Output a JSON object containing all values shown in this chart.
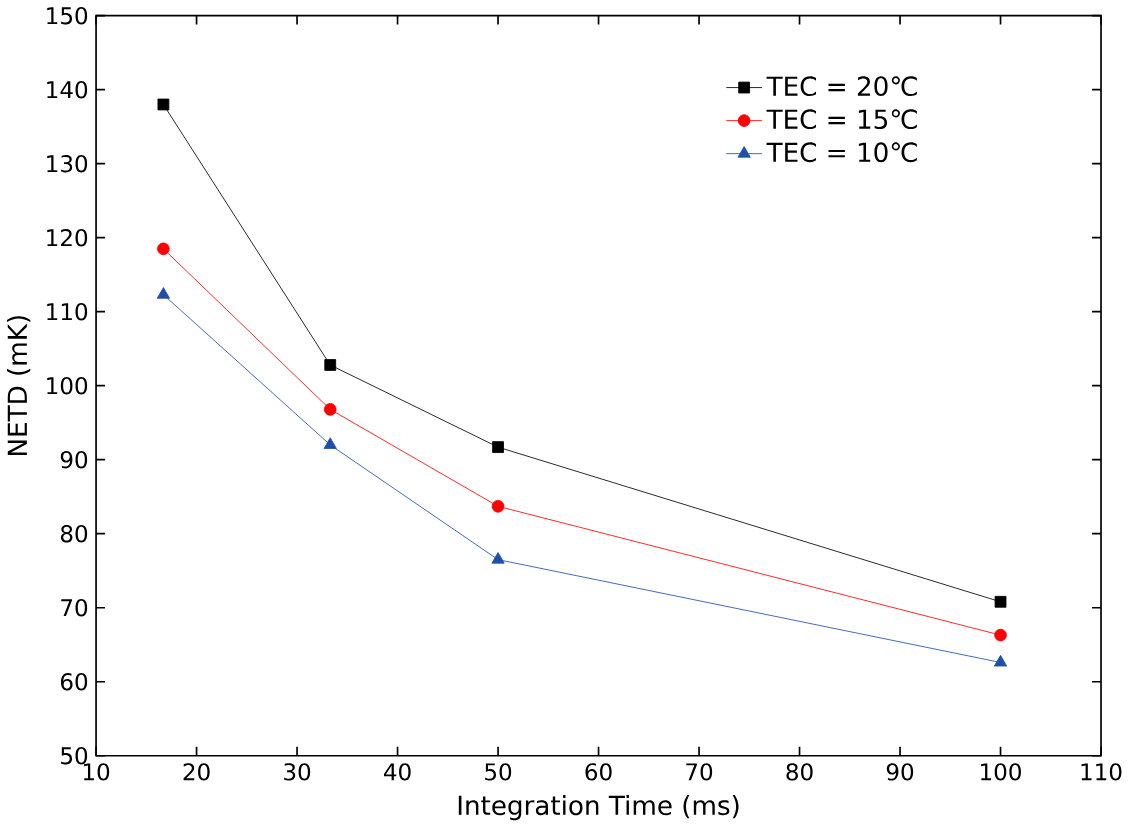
{
  "chart_data": {
    "type": "line",
    "xlabel": "Integration Time (ms)",
    "ylabel": "NETD (mK)",
    "xlim": [
      10,
      110
    ],
    "ylim": [
      50,
      150
    ],
    "xticks": [
      10,
      20,
      30,
      40,
      50,
      60,
      70,
      80,
      90,
      100,
      110
    ],
    "yticks": [
      50,
      60,
      70,
      80,
      90,
      100,
      110,
      120,
      130,
      140,
      150
    ],
    "grid": false,
    "legend": "top right",
    "line_style": "solid",
    "x": [
      16.7,
      33.3,
      50,
      100
    ],
    "series": [
      {
        "name": "TEC = 20℃",
        "color": "#000000",
        "marker": "square",
        "values": [
          138,
          102.8,
          91.7,
          70.8
        ]
      },
      {
        "name": "TEC = 15℃",
        "color": "#ff0000",
        "marker": "circle",
        "values": [
          118.5,
          96.8,
          83.7,
          66.3
        ]
      },
      {
        "name": "TEC = 10℃",
        "color": "#1f4fa8",
        "marker": "triangle",
        "values": [
          112.3,
          92,
          76.5,
          62.6
        ]
      }
    ]
  }
}
